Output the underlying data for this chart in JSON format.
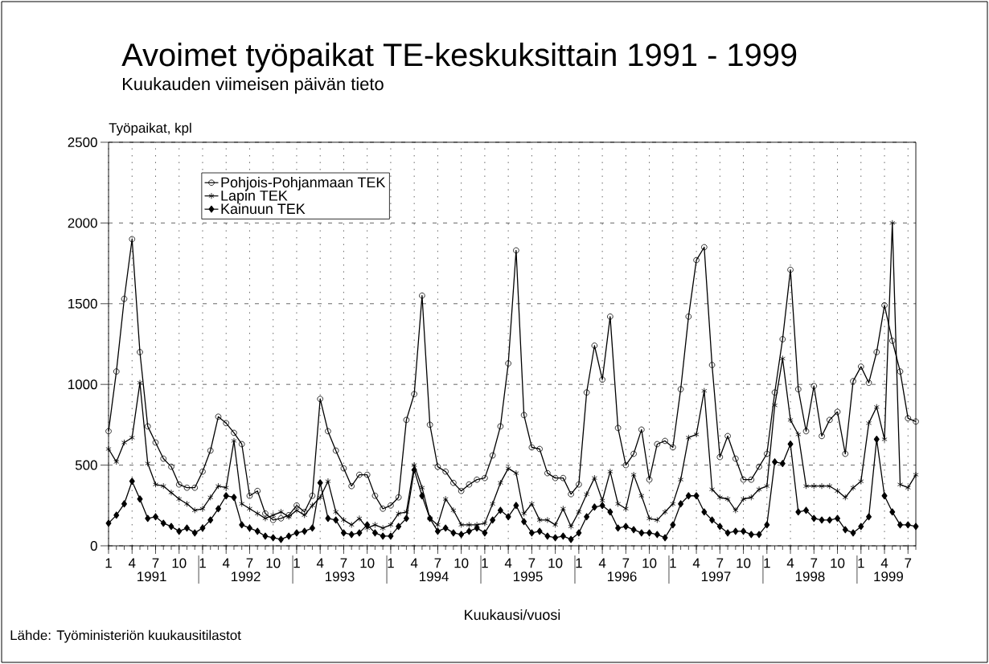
{
  "chart_data": {
    "type": "line",
    "title": "Avoimet työpaikat TE-keskuksittain 1991 - 1999",
    "subtitle": "Kuukauden viimeisen päivän tieto",
    "ylabel": "Työpaikat, kpl",
    "xlabel": "Kuukausi/vuosi",
    "annotations": [
      "1991",
      "1992",
      "1993",
      "1994",
      "1995",
      "1996",
      "1997",
      "1998",
      "1999",
      "Lähde: Työministeriön kuukausitilastot"
    ],
    "categories": [
      "1",
      null,
      null,
      "4",
      null,
      null,
      "7",
      null,
      null,
      "10",
      null,
      null,
      "1",
      null,
      null,
      "4",
      null,
      null,
      "7",
      null,
      null,
      "10",
      null,
      null,
      "1",
      null,
      null,
      "4",
      null,
      null,
      "7",
      null,
      null,
      "10",
      null,
      null,
      "1",
      null,
      null,
      "4",
      null,
      null,
      "7",
      null,
      null,
      "10",
      null,
      null,
      "1",
      null,
      null,
      "4",
      null,
      null,
      "7",
      null,
      null,
      "10",
      null,
      null,
      "1",
      null,
      null,
      "4",
      null,
      null,
      "7",
      null,
      null,
      "10",
      null,
      null,
      "1",
      null,
      null,
      "4",
      null,
      null,
      "7",
      null,
      null,
      "10",
      null,
      null,
      "1",
      null,
      null,
      "4",
      null,
      null,
      "7",
      null,
      null,
      "10",
      null,
      null,
      "1",
      null,
      null,
      "4",
      null,
      null,
      "7",
      null
    ],
    "series": [
      {
        "name": "Pohjois-Pohjanmaan TEK",
        "color": "#000000",
        "marker": "circle",
        "values": [
          710,
          1080,
          1530,
          1900,
          1200,
          740,
          640,
          540,
          490,
          380,
          360,
          360,
          460,
          590,
          800,
          760,
          700,
          630,
          310,
          340,
          200,
          160,
          170,
          190,
          250,
          210,
          310,
          910,
          710,
          590,
          480,
          370,
          440,
          440,
          310,
          230,
          250,
          300,
          780,
          940,
          1550,
          750,
          490,
          460,
          390,
          340,
          380,
          410,
          420,
          560,
          740,
          1130,
          1830,
          810,
          610,
          600,
          450,
          420,
          420,
          320,
          380,
          950,
          1240,
          1030,
          1420,
          730,
          500,
          570,
          720,
          410,
          630,
          650,
          610,
          970,
          1420,
          1770,
          1850,
          1120,
          550,
          680,
          540,
          410,
          410,
          490,
          570,
          950,
          1280,
          1710,
          970,
          710,
          990,
          680,
          780,
          830,
          570,
          1020,
          1110,
          1010,
          1200,
          1490,
          1270,
          1080,
          790,
          770
        ]
      },
      {
        "name": "Lapin TEK",
        "color": "#000000",
        "marker": "cross",
        "values": [
          600,
          520,
          640,
          670,
          1010,
          510,
          380,
          370,
          330,
          290,
          260,
          220,
          230,
          300,
          370,
          360,
          650,
          260,
          230,
          200,
          170,
          190,
          210,
          180,
          220,
          190,
          250,
          300,
          400,
          210,
          160,
          130,
          170,
          110,
          130,
          110,
          130,
          200,
          210,
          500,
          360,
          170,
          130,
          290,
          220,
          130,
          130,
          130,
          140,
          260,
          390,
          480,
          450,
          200,
          260,
          160,
          160,
          130,
          230,
          120,
          210,
          320,
          420,
          280,
          460,
          260,
          230,
          440,
          310,
          170,
          160,
          210,
          260,
          410,
          670,
          690,
          960,
          350,
          300,
          290,
          220,
          290,
          300,
          350,
          370,
          870,
          1160,
          780,
          690,
          370,
          370,
          370,
          370,
          340,
          300,
          360,
          400,
          760,
          860,
          660,
          2000,
          380,
          360,
          440
        ]
      },
      {
        "name": "Kainuun TEK",
        "color": "#000000",
        "marker": "diamond",
        "values": [
          140,
          190,
          260,
          400,
          290,
          170,
          180,
          140,
          120,
          90,
          110,
          80,
          110,
          160,
          230,
          310,
          300,
          130,
          110,
          90,
          60,
          50,
          40,
          60,
          80,
          90,
          110,
          390,
          170,
          160,
          80,
          70,
          80,
          130,
          80,
          60,
          60,
          120,
          170,
          470,
          310,
          170,
          90,
          110,
          80,
          70,
          90,
          110,
          80,
          160,
          220,
          180,
          250,
          150,
          80,
          90,
          60,
          50,
          60,
          40,
          80,
          180,
          240,
          250,
          210,
          110,
          120,
          100,
          80,
          80,
          70,
          50,
          130,
          260,
          310,
          310,
          210,
          160,
          120,
          80,
          90,
          90,
          70,
          70,
          130,
          520,
          510,
          630,
          210,
          220,
          170,
          160,
          160,
          170,
          100,
          80,
          120,
          180,
          660,
          310,
          210,
          130,
          130,
          120
        ]
      }
    ],
    "ylim": [
      0,
      2500
    ],
    "yticks": [
      0,
      500,
      1000,
      1500,
      2000,
      2500
    ],
    "grid": true,
    "legend": "top left"
  }
}
